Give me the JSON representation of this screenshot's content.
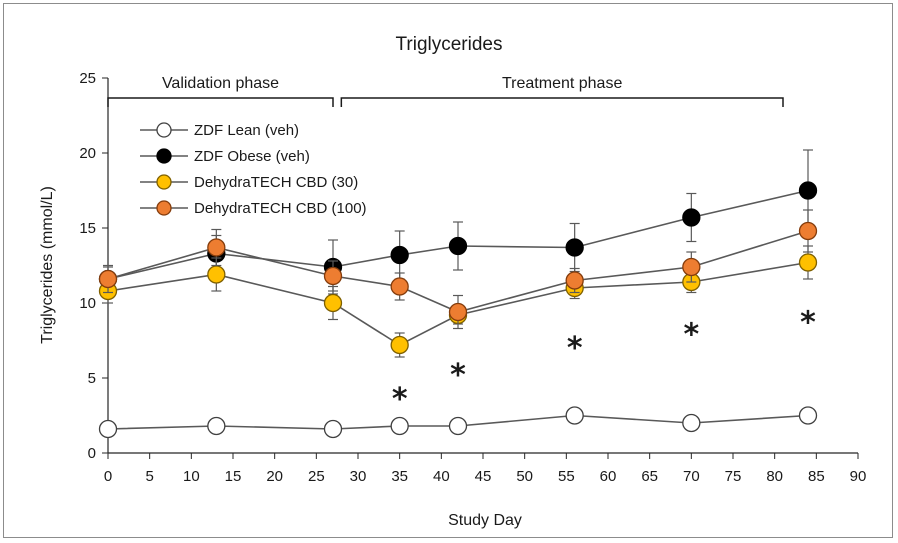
{
  "chart_data": {
    "type": "line",
    "title": "Triglycerides",
    "xlabel": "Study Day",
    "ylabel": "Triglycerides (mmol/L)",
    "xlim": [
      0,
      90
    ],
    "ylim": [
      0,
      25
    ],
    "xticks": [
      0,
      5,
      10,
      15,
      20,
      25,
      30,
      35,
      40,
      45,
      50,
      55,
      60,
      65,
      70,
      75,
      80,
      85,
      90
    ],
    "yticks": [
      0,
      5,
      10,
      15,
      20,
      25
    ],
    "grid": false,
    "legend_position": "top-left",
    "phases": [
      {
        "label": "Validation phase",
        "start": 0,
        "end": 27
      },
      {
        "label": "Treatment phase",
        "start": 28,
        "end": 81
      }
    ],
    "series": [
      {
        "name": "ZDF Lean (veh)",
        "fill": "#ffffff",
        "stroke": "#404040",
        "x": [
          0,
          13,
          27,
          35,
          42,
          56,
          70,
          84
        ],
        "y": [
          1.6,
          1.8,
          1.6,
          1.8,
          1.8,
          2.5,
          2.0,
          2.5
        ],
        "err": [
          0,
          0,
          0,
          0,
          0,
          0,
          0,
          0
        ]
      },
      {
        "name": "ZDF Obese (veh)",
        "fill": "#000000",
        "stroke": "#000000",
        "x": [
          0,
          13,
          27,
          35,
          42,
          56,
          70,
          84
        ],
        "y": [
          11.6,
          13.3,
          12.4,
          13.2,
          13.8,
          13.7,
          15.7,
          17.5
        ],
        "err": [
          0.8,
          1.2,
          1.8,
          1.6,
          1.6,
          1.6,
          1.6,
          2.7
        ]
      },
      {
        "name": "DehydraTECH CBD (30)",
        "fill": "#ffc000",
        "stroke": "#7f6000",
        "x": [
          0,
          13,
          27,
          35,
          42,
          56,
          70,
          84
        ],
        "y": [
          10.8,
          11.9,
          10.0,
          7.2,
          9.2,
          11.0,
          11.4,
          12.7
        ],
        "err": [
          0.8,
          1.1,
          1.1,
          0.8,
          0.6,
          0.7,
          0.7,
          1.1
        ]
      },
      {
        "name": "DehydraTECH CBD (100)",
        "fill": "#ed7d31",
        "stroke": "#843c0c",
        "x": [
          0,
          13,
          27,
          35,
          42,
          56,
          70,
          84
        ],
        "y": [
          11.6,
          13.7,
          11.8,
          11.1,
          9.4,
          11.5,
          12.4,
          14.8
        ],
        "err": [
          0.9,
          1.2,
          1.0,
          0.9,
          1.1,
          0.8,
          1.0,
          1.4
        ]
      }
    ],
    "annotations": [
      {
        "text": "*",
        "x": 35,
        "y": 4.4
      },
      {
        "text": "*",
        "x": 42,
        "y": 6.0
      },
      {
        "text": "*",
        "x": 56,
        "y": 7.8
      },
      {
        "text": "*",
        "x": 70,
        "y": 8.7
      },
      {
        "text": "*",
        "x": 84,
        "y": 9.5
      }
    ]
  }
}
